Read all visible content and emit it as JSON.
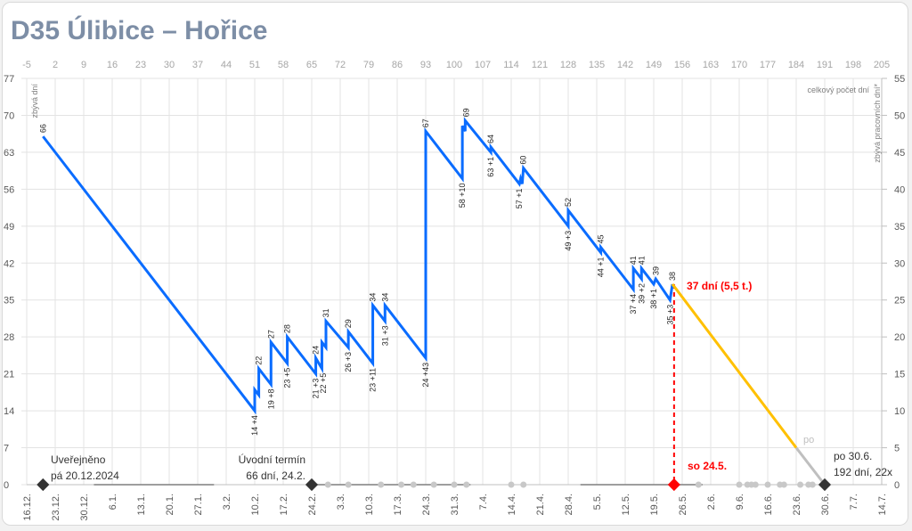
{
  "title": "D35 Úlibice – Hořice",
  "chart_data": {
    "type": "line",
    "title": "D35 Úlibice – Hořice",
    "top_axis": {
      "label": "celkový počet dní",
      "min": -5,
      "max": 205,
      "step": 7
    },
    "left_axis": {
      "label": "zbývá dní",
      "min": 0,
      "max": 77,
      "step": 7
    },
    "right_axis": {
      "label": "zbývá pracovních dní*",
      "min": 0,
      "max": 55,
      "step": 5
    },
    "bottom_ticks": [
      "16.12.",
      "23.12.",
      "30.12.",
      "6.1.",
      "13.1.",
      "20.1.",
      "27.1.",
      "3.2.",
      "10.2.",
      "17.2.",
      "24.2.",
      "3.3.",
      "10.3.",
      "17.3.",
      "24.3.",
      "31.3.",
      "7.4.",
      "14.4.",
      "21.4.",
      "28.4.",
      "5.5.",
      "12.5.",
      "19.5.",
      "26.5.",
      "2.6.",
      "9.6.",
      "16.6.",
      "23.6.",
      "30.6.",
      "7.7.",
      "14.7."
    ],
    "grid": true,
    "series": [
      {
        "color": "#0a6cff",
        "points": [
          [
            -1,
            66
          ],
          [
            51,
            14
          ],
          [
            51,
            18
          ],
          [
            52,
            17
          ],
          [
            52,
            22
          ],
          [
            55,
            19
          ],
          [
            55,
            27
          ],
          [
            59,
            23
          ],
          [
            59,
            28
          ],
          [
            66,
            21
          ],
          [
            66,
            24
          ],
          [
            67.5,
            22
          ],
          [
            67.5,
            27
          ],
          [
            68.5,
            26
          ],
          [
            68.5,
            31
          ],
          [
            74,
            26
          ],
          [
            74,
            29
          ],
          [
            80,
            23
          ],
          [
            80,
            34
          ],
          [
            83,
            31
          ],
          [
            83,
            34
          ],
          [
            93,
            24
          ],
          [
            93,
            67
          ],
          [
            102,
            58
          ],
          [
            102,
            68
          ],
          [
            102.7,
            67
          ],
          [
            102.7,
            69
          ],
          [
            109,
            63
          ],
          [
            109,
            64
          ],
          [
            116,
            57
          ],
          [
            116.3,
            58
          ],
          [
            116.7,
            57
          ],
          [
            117,
            60
          ],
          [
            128,
            49
          ],
          [
            128,
            52
          ],
          [
            136,
            44
          ],
          [
            136,
            45
          ],
          [
            144,
            37
          ],
          [
            144,
            41
          ],
          [
            146,
            39
          ],
          [
            146,
            41
          ],
          [
            149,
            38
          ],
          [
            149.5,
            39
          ],
          [
            153,
            35
          ],
          [
            153.6,
            38
          ]
        ]
      },
      {
        "color": "#ffc000",
        "points": [
          [
            153.6,
            38
          ],
          [
            184,
            7
          ]
        ]
      },
      {
        "color": "#bfbfbf",
        "points": [
          [
            184,
            7
          ],
          [
            191,
            0
          ]
        ]
      }
    ],
    "labels_above": [
      {
        "t": "66",
        "d": -1,
        "v": 66
      },
      {
        "t": "22",
        "d": 52,
        "v": 22
      },
      {
        "t": "27",
        "d": 55,
        "v": 27
      },
      {
        "t": "28",
        "d": 59,
        "v": 28
      },
      {
        "t": "24",
        "d": 66,
        "v": 24
      },
      {
        "t": "31",
        "d": 68.5,
        "v": 31
      },
      {
        "t": "29",
        "d": 74,
        "v": 29
      },
      {
        "t": "34",
        "d": 80,
        "v": 34
      },
      {
        "t": "34",
        "d": 83,
        "v": 34
      },
      {
        "t": "67",
        "d": 93,
        "v": 67
      },
      {
        "t": "69",
        "d": 102.9,
        "v": 69
      },
      {
        "t": "64",
        "d": 109,
        "v": 64
      },
      {
        "t": "60",
        "d": 117,
        "v": 60
      },
      {
        "t": "52",
        "d": 128,
        "v": 52
      },
      {
        "t": "45",
        "d": 136,
        "v": 45
      },
      {
        "t": "41",
        "d": 144,
        "v": 41
      },
      {
        "t": "41",
        "d": 146,
        "v": 41
      },
      {
        "t": "39",
        "d": 149.5,
        "v": 39
      },
      {
        "t": "38",
        "d": 153.6,
        "v": 38
      }
    ],
    "labels_below": [
      {
        "t": "14 +4",
        "d": 51,
        "v": 14
      },
      {
        "t": "19 +8",
        "d": 55,
        "v": 19
      },
      {
        "t": "23 +5",
        "d": 59,
        "v": 23
      },
      {
        "t": "21 +3",
        "d": 66,
        "v": 21
      },
      {
        "t": "22 +5",
        "d": 67.8,
        "v": 22
      },
      {
        "t": "26 +3",
        "d": 74,
        "v": 26
      },
      {
        "t": "23 +11",
        "d": 80,
        "v": 23
      },
      {
        "t": "31 +3",
        "d": 83,
        "v": 31
      },
      {
        "t": "24 +43",
        "d": 93,
        "v": 24
      },
      {
        "t": "58 +10",
        "d": 102,
        "v": 58
      },
      {
        "t": "63 +1",
        "d": 109,
        "v": 63
      },
      {
        "t": "57 +1",
        "d": 116,
        "v": 57
      },
      {
        "t": "49 +3",
        "d": 128,
        "v": 49
      },
      {
        "t": "44 +1",
        "d": 136,
        "v": 44
      },
      {
        "t": "37 +4",
        "d": 144,
        "v": 37
      },
      {
        "t": "39 +2",
        "d": 146,
        "v": 39
      },
      {
        "t": "38 +1",
        "d": 149,
        "v": 38
      },
      {
        "t": "35 +3",
        "d": 153,
        "v": 35
      }
    ],
    "milestones": [
      {
        "d": -1,
        "color": "#333333",
        "lines": [
          "Uveřejněno",
          "pá 20.12.2024"
        ]
      },
      {
        "d": 65,
        "color": "#333333",
        "lines": [
          "Úvodní termín",
          "66 dní, 24.2."
        ]
      },
      {
        "d": 154,
        "color": "#ff0000",
        "lines": [
          "so 24.5."
        ]
      },
      {
        "d": 191,
        "color": "#333333",
        "lines": [
          "po 30.6.",
          "192 dní, 22x"
        ]
      }
    ],
    "current_annotation": "37 dní (5,5 t.)",
    "gray_line_label": "po",
    "zero_line_dots": [
      69,
      74,
      82,
      87,
      90,
      95,
      100,
      103,
      114,
      117,
      160,
      170,
      172,
      173,
      174,
      177,
      180,
      181,
      185,
      187,
      188
    ],
    "zero_line_segments": [
      [
        11.5,
        41
      ],
      [
        65,
        104
      ],
      [
        131,
        161
      ]
    ]
  }
}
